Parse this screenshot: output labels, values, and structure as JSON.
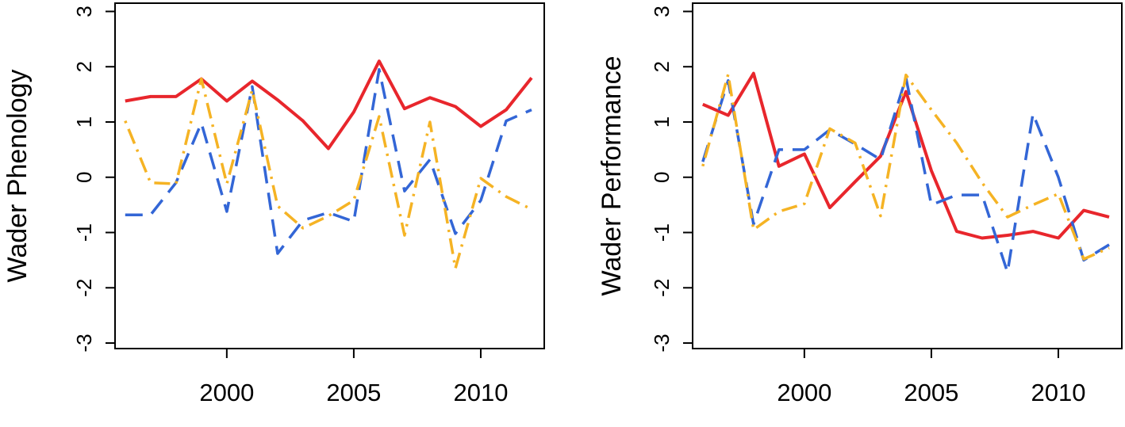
{
  "chart_data": [
    {
      "type": "line",
      "title": "",
      "xlabel": "",
      "ylabel": "Wader Phenology",
      "xlim": [
        1995.6,
        2012.5
      ],
      "ylim": [
        -3.1,
        3.15
      ],
      "xticks": [
        2000,
        2005,
        2010
      ],
      "xtick_labels": [
        "2000",
        "2005",
        "2010"
      ],
      "yticks": [
        -3,
        -2,
        -1,
        0,
        1,
        2,
        3
      ],
      "ytick_labels": [
        "-3",
        "-2",
        "-1",
        "0",
        "1",
        "2",
        "3"
      ],
      "grid": false,
      "legend": "none",
      "series": [
        {
          "color": "#e8262c",
          "style": "solid",
          "x": [
            1996,
            1997,
            1998,
            1999,
            2000,
            2001,
            2002,
            2003,
            2004,
            2005,
            2006,
            2007,
            2008,
            2009,
            2010,
            2011,
            2012
          ],
          "values": [
            1.38,
            1.46,
            1.46,
            1.78,
            1.38,
            1.74,
            1.4,
            1.02,
            0.52,
            1.18,
            2.1,
            1.24,
            1.44,
            1.28,
            0.92,
            1.22,
            1.8
          ]
        },
        {
          "color": "#3366d6",
          "style": "dashed",
          "x": [
            1996,
            1997,
            1998,
            1999,
            2000,
            2001,
            2002,
            2003,
            2004,
            2005,
            2006,
            2007,
            2008,
            2009,
            2010,
            2011,
            2012
          ],
          "values": [
            -0.68,
            -0.68,
            -0.1,
            0.98,
            -0.62,
            1.64,
            -1.38,
            -0.78,
            -0.64,
            -0.8,
            1.95,
            -0.25,
            0.32,
            -1.02,
            -0.42,
            1.02,
            1.22
          ]
        },
        {
          "color": "#f5b324",
          "style": "dotdash",
          "x": [
            1996,
            1997,
            1998,
            1999,
            2000,
            2001,
            2002,
            2003,
            2004,
            2005,
            2006,
            2007,
            2008,
            2009,
            2010,
            2011,
            2012
          ],
          "values": [
            1.02,
            -0.1,
            -0.12,
            1.78,
            -0.12,
            1.58,
            -0.52,
            -0.92,
            -0.7,
            -0.42,
            1.1,
            -1.05,
            1.0,
            -1.65,
            -0.02,
            -0.35,
            -0.58
          ]
        }
      ]
    },
    {
      "type": "line",
      "title": "",
      "xlabel": "",
      "ylabel": "Wader Performance",
      "xlim": [
        1995.6,
        2012.5
      ],
      "ylim": [
        -3.1,
        3.15
      ],
      "xticks": [
        2000,
        2005,
        2010
      ],
      "xtick_labels": [
        "2000",
        "2005",
        "2010"
      ],
      "yticks": [
        -3,
        -2,
        -1,
        0,
        1,
        2,
        3
      ],
      "ytick_labels": [
        "-3",
        "-2",
        "-1",
        "0",
        "1",
        "2",
        "3"
      ],
      "grid": false,
      "legend": "none",
      "series": [
        {
          "color": "#e8262c",
          "style": "solid",
          "x": [
            1996,
            1997,
            1998,
            1999,
            2000,
            2001,
            2002,
            2003,
            2004,
            2005,
            2006,
            2007,
            2008,
            2009,
            2010,
            2011,
            2012
          ],
          "values": [
            1.32,
            1.12,
            1.88,
            0.2,
            0.42,
            -0.55,
            -0.08,
            0.38,
            1.55,
            0.12,
            -0.98,
            -1.1,
            -1.05,
            -0.98,
            -1.1,
            -0.6,
            -0.72
          ]
        },
        {
          "color": "#3366d6",
          "style": "dashed",
          "x": [
            1996,
            1997,
            1998,
            1999,
            2000,
            2001,
            2002,
            2003,
            2004,
            2005,
            2006,
            2007,
            2008,
            2009,
            2010,
            2011,
            2012
          ],
          "values": [
            0.28,
            1.75,
            -0.85,
            0.5,
            0.5,
            0.86,
            0.6,
            0.32,
            1.8,
            -0.5,
            -0.32,
            -0.32,
            -1.72,
            1.15,
            0.0,
            -1.5,
            -1.22
          ]
        },
        {
          "color": "#f5b324",
          "style": "dotdash",
          "x": [
            1996,
            1997,
            1998,
            1999,
            2000,
            2001,
            2002,
            2003,
            2004,
            2005,
            2006,
            2007,
            2008,
            2009,
            2010,
            2011,
            2012
          ],
          "values": [
            0.2,
            1.86,
            -0.95,
            -0.62,
            -0.48,
            0.88,
            0.62,
            -0.7,
            1.85,
            1.22,
            0.62,
            -0.1,
            -0.72,
            -0.5,
            -0.3,
            -1.48,
            -1.28
          ]
        }
      ]
    }
  ]
}
